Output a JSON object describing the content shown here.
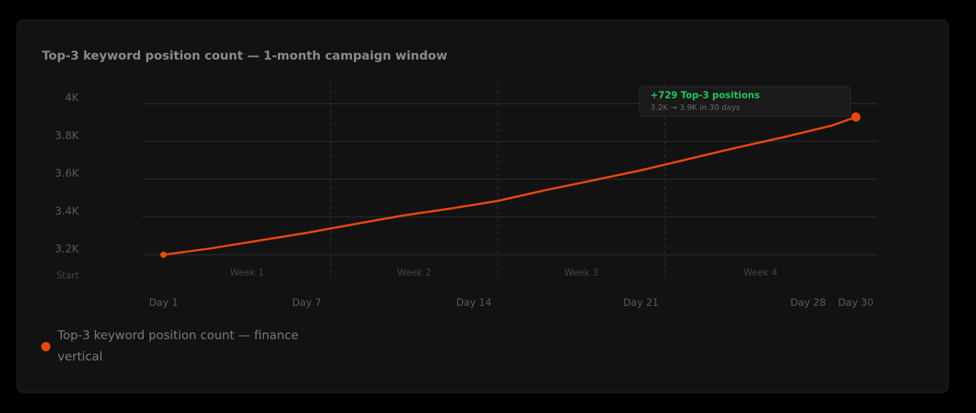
{
  "chart_data": {
    "type": "line",
    "title": "Top-3 keyword position count — 1-month campaign window",
    "x": [
      1,
      3,
      5,
      7,
      9,
      11,
      13,
      15,
      17,
      19,
      21,
      23,
      25,
      27,
      29,
      30
    ],
    "series": [
      {
        "name": "Top-3 keyword position count — finance vertical",
        "color": "#e8470f",
        "values": [
          3200,
          3234,
          3275,
          3316,
          3362,
          3407,
          3444,
          3485,
          3542,
          3594,
          3647,
          3707,
          3767,
          3823,
          3884,
          3929
        ]
      }
    ],
    "xlim": [
      1,
      30
    ],
    "xticks": [
      {
        "value": 1,
        "label": "Day 1"
      },
      {
        "value": 7,
        "label": "Day 7"
      },
      {
        "value": 14,
        "label": "Day 14"
      },
      {
        "value": 21,
        "label": "Day 21"
      },
      {
        "value": 28,
        "label": "Day 28"
      },
      {
        "value": 30,
        "label": "Day 30"
      }
    ],
    "ylim": [
      3200,
      4000
    ],
    "yticks": [
      {
        "value": 3200,
        "label": "3.2K"
      },
      {
        "value": 3400,
        "label": "3.4K"
      },
      {
        "value": 3600,
        "label": "3.6K"
      },
      {
        "value": 3800,
        "label": "3.8K"
      },
      {
        "value": 4000,
        "label": "4K"
      }
    ],
    "y_baseline_label": "Start",
    "grid": true,
    "weeks": {
      "labels": [
        "Week 1",
        "Week 2",
        "Week 3",
        "Week 4"
      ],
      "dividers": [
        8,
        15,
        22
      ]
    },
    "annotation": {
      "title": "+729 Top-3 positions",
      "text": "3.2K → 3.9K in 30 days"
    }
  }
}
